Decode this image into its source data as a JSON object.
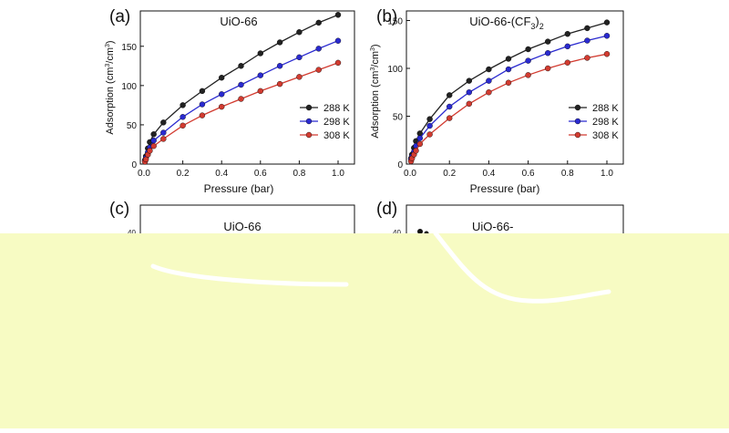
{
  "colors": {
    "s288": "#222222",
    "s298": "#2a2ad0",
    "s308": "#d23b30",
    "overlay": "#f7fbc3",
    "smear": "#ffffff"
  },
  "chart_data": [
    {
      "id": "a",
      "panel_label": "(a)",
      "type": "line",
      "title": "UiO-66",
      "xlabel": "Pressure (bar)",
      "ylabel": "Adsorption (cm",
      "ylabel_unit": "3",
      "ylabel_mid": "/cm",
      "ylabel_end": ")",
      "xlim": [
        0,
        1.0
      ],
      "ylim": [
        0,
        195
      ],
      "xticks": [
        "0.0",
        "0.2",
        "0.4",
        "0.6",
        "0.8",
        "1.0"
      ],
      "xtick_values": [
        0,
        0.2,
        0.4,
        0.6,
        0.8,
        1.0
      ],
      "yticks": [
        "0",
        "50",
        "100",
        "150"
      ],
      "ytick_values": [
        0,
        50,
        100,
        150
      ],
      "legend_position": "lower-right",
      "series": [
        {
          "name": "288 K",
          "color_key": "s288",
          "x": [
            0.005,
            0.01,
            0.02,
            0.03,
            0.05,
            0.1,
            0.2,
            0.3,
            0.4,
            0.5,
            0.6,
            0.7,
            0.8,
            0.9,
            1.0
          ],
          "y": [
            5,
            10,
            20,
            28,
            38,
            53,
            75,
            93,
            110,
            125,
            141,
            155,
            168,
            180,
            190
          ]
        },
        {
          "name": "298 K",
          "color_key": "s298",
          "x": [
            0.005,
            0.01,
            0.02,
            0.03,
            0.05,
            0.1,
            0.2,
            0.3,
            0.4,
            0.5,
            0.6,
            0.7,
            0.8,
            0.9,
            1.0
          ],
          "y": [
            4,
            8,
            15,
            21,
            30,
            40,
            60,
            76,
            89,
            101,
            113,
            125,
            136,
            147,
            157
          ]
        },
        {
          "name": "308 K",
          "color_key": "s308",
          "x": [
            0.005,
            0.01,
            0.02,
            0.03,
            0.05,
            0.1,
            0.2,
            0.3,
            0.4,
            0.5,
            0.6,
            0.7,
            0.8,
            0.9,
            1.0
          ],
          "y": [
            3,
            6,
            12,
            17,
            23,
            32,
            49,
            62,
            73,
            83,
            93,
            102,
            111,
            120,
            129
          ]
        }
      ]
    },
    {
      "id": "b",
      "panel_label": "(b)",
      "type": "line",
      "title": "UiO-66-(CF",
      "title_sub": "3",
      "title_end": ")",
      "title_sub2": "2",
      "xlabel": "Pressure (bar)",
      "ylabel": "Adsorption (cm",
      "ylabel_unit": "3",
      "ylabel_mid": "/cm",
      "ylabel_end": ")",
      "xlim": [
        0,
        1.0
      ],
      "ylim": [
        0,
        160
      ],
      "xticks": [
        "0.0",
        "0.2",
        "0.4",
        "0.6",
        "0.8",
        "1.0"
      ],
      "xtick_values": [
        0,
        0.2,
        0.4,
        0.6,
        0.8,
        1.0
      ],
      "yticks": [
        "0",
        "50",
        "100",
        "150"
      ],
      "ytick_values": [
        0,
        50,
        100,
        150
      ],
      "legend_position": "lower-right",
      "series": [
        {
          "name": "288 K",
          "color_key": "s288",
          "x": [
            0.005,
            0.01,
            0.02,
            0.03,
            0.05,
            0.1,
            0.2,
            0.3,
            0.4,
            0.5,
            0.6,
            0.7,
            0.8,
            0.9,
            1.0
          ],
          "y": [
            6,
            10,
            17,
            24,
            32,
            47,
            72,
            87,
            99,
            110,
            120,
            128,
            136,
            142,
            148
          ]
        },
        {
          "name": "298 K",
          "color_key": "s298",
          "x": [
            0.005,
            0.01,
            0.02,
            0.03,
            0.05,
            0.1,
            0.2,
            0.3,
            0.4,
            0.5,
            0.6,
            0.7,
            0.8,
            0.9,
            1.0
          ],
          "y": [
            5,
            8,
            13,
            19,
            27,
            40,
            60,
            75,
            87,
            99,
            108,
            116,
            123,
            129,
            134
          ]
        },
        {
          "name": "308 K",
          "color_key": "s308",
          "x": [
            0.005,
            0.01,
            0.02,
            0.03,
            0.05,
            0.1,
            0.2,
            0.3,
            0.4,
            0.5,
            0.6,
            0.7,
            0.8,
            0.9,
            1.0
          ],
          "y": [
            3,
            6,
            10,
            14,
            21,
            31,
            48,
            63,
            75,
            85,
            93,
            100,
            106,
            111,
            115
          ]
        }
      ]
    },
    {
      "id": "c",
      "panel_label": "(c)",
      "type": "line",
      "title": "UiO-66",
      "partially_obscured": true,
      "visible_ytick": "40"
    },
    {
      "id": "d",
      "panel_label": "(d)",
      "type": "line",
      "title": "UiO-66-",
      "partially_obscured": true,
      "visible_ytick": "40"
    }
  ]
}
